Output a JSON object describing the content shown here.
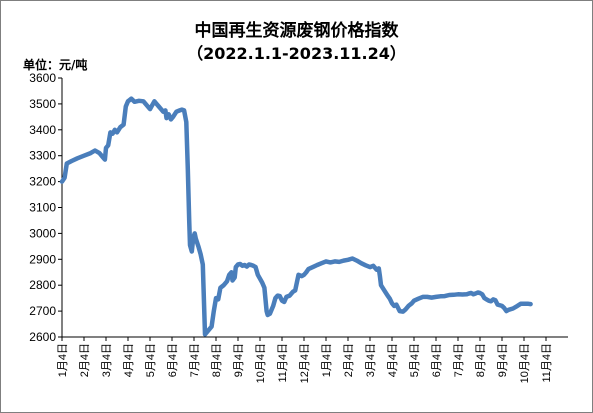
{
  "chart_data": {
    "type": "line",
    "title": "中国再生资源废钢价格指数",
    "subtitle": "（2022.1.1-2023.11.24）",
    "unit_label": "单位：元/吨",
    "ylim": [
      2600,
      3600
    ],
    "yticks": [
      2600,
      2700,
      2800,
      2900,
      3000,
      3100,
      3200,
      3300,
      3400,
      3500,
      3600
    ],
    "x_range": [
      0,
      23
    ],
    "xtick_labels": [
      {
        "label": "1月4日",
        "x": 0
      },
      {
        "label": "2月4日",
        "x": 1
      },
      {
        "label": "3月4日",
        "x": 2
      },
      {
        "label": "4月4日",
        "x": 3
      },
      {
        "label": "5月4日",
        "x": 4
      },
      {
        "label": "6月4日",
        "x": 5
      },
      {
        "label": "7月4日",
        "x": 6
      },
      {
        "label": "8月4日",
        "x": 7
      },
      {
        "label": "9月4日",
        "x": 8
      },
      {
        "label": "10月4日",
        "x": 9
      },
      {
        "label": "11月4日",
        "x": 10
      },
      {
        "label": "12月4日",
        "x": 11
      },
      {
        "label": "1月4日",
        "x": 12
      },
      {
        "label": "2月4日",
        "x": 13
      },
      {
        "label": "3月4日",
        "x": 14
      },
      {
        "label": "4月4日",
        "x": 15
      },
      {
        "label": "5月4日",
        "x": 16
      },
      {
        "label": "6月4日",
        "x": 17
      },
      {
        "label": "7月4日",
        "x": 18
      },
      {
        "label": "8月4日",
        "x": 19
      },
      {
        "label": "9月4日",
        "x": 20
      },
      {
        "label": "10月4日",
        "x": 21
      },
      {
        "label": "11月4日",
        "x": 22
      }
    ],
    "grid": false,
    "colors": {
      "line": "#4a7ebb",
      "axis": "#000000"
    },
    "series": [
      {
        "values": [
          [
            0.0,
            3200
          ],
          [
            0.12,
            3215
          ],
          [
            0.22,
            3270
          ],
          [
            0.45,
            3280
          ],
          [
            0.7,
            3290
          ],
          [
            1.0,
            3300
          ],
          [
            1.3,
            3310
          ],
          [
            1.5,
            3320
          ],
          [
            1.7,
            3310
          ],
          [
            1.85,
            3295
          ],
          [
            1.95,
            3285
          ],
          [
            2.0,
            3330
          ],
          [
            2.1,
            3340
          ],
          [
            2.2,
            3390
          ],
          [
            2.3,
            3385
          ],
          [
            2.4,
            3400
          ],
          [
            2.5,
            3390
          ],
          [
            2.65,
            3410
          ],
          [
            2.8,
            3420
          ],
          [
            2.9,
            3490
          ],
          [
            3.0,
            3510
          ],
          [
            3.15,
            3520
          ],
          [
            3.3,
            3508
          ],
          [
            3.5,
            3512
          ],
          [
            3.7,
            3510
          ],
          [
            3.85,
            3495
          ],
          [
            4.0,
            3480
          ],
          [
            4.1,
            3495
          ],
          [
            4.2,
            3510
          ],
          [
            4.3,
            3500
          ],
          [
            4.4,
            3490
          ],
          [
            4.5,
            3480
          ],
          [
            4.6,
            3470
          ],
          [
            4.7,
            3475
          ],
          [
            4.75,
            3445
          ],
          [
            4.85,
            3460
          ],
          [
            4.95,
            3440
          ],
          [
            5.05,
            3450
          ],
          [
            5.2,
            3470
          ],
          [
            5.35,
            3475
          ],
          [
            5.45,
            3478
          ],
          [
            5.55,
            3475
          ],
          [
            5.65,
            3430
          ],
          [
            5.72,
            3250
          ],
          [
            5.78,
            3050
          ],
          [
            5.82,
            2955
          ],
          [
            5.9,
            2930
          ],
          [
            5.97,
            2985
          ],
          [
            6.03,
            3000
          ],
          [
            6.08,
            2980
          ],
          [
            6.2,
            2950
          ],
          [
            6.3,
            2920
          ],
          [
            6.4,
            2880
          ],
          [
            6.5,
            2610
          ],
          [
            6.6,
            2620
          ],
          [
            6.7,
            2630
          ],
          [
            6.8,
            2640
          ],
          [
            6.9,
            2700
          ],
          [
            7.0,
            2750
          ],
          [
            7.1,
            2745
          ],
          [
            7.2,
            2790
          ],
          [
            7.35,
            2800
          ],
          [
            7.5,
            2815
          ],
          [
            7.6,
            2840
          ],
          [
            7.7,
            2850
          ],
          [
            7.75,
            2818
          ],
          [
            7.85,
            2830
          ],
          [
            7.9,
            2870
          ],
          [
            8.0,
            2880
          ],
          [
            8.1,
            2882
          ],
          [
            8.2,
            2875
          ],
          [
            8.3,
            2878
          ],
          [
            8.4,
            2872
          ],
          [
            8.5,
            2880
          ],
          [
            8.6,
            2878
          ],
          [
            8.7,
            2875
          ],
          [
            8.8,
            2870
          ],
          [
            8.9,
            2840
          ],
          [
            9.0,
            2825
          ],
          [
            9.1,
            2810
          ],
          [
            9.2,
            2790
          ],
          [
            9.3,
            2700
          ],
          [
            9.35,
            2685
          ],
          [
            9.45,
            2690
          ],
          [
            9.6,
            2720
          ],
          [
            9.7,
            2750
          ],
          [
            9.8,
            2760
          ],
          [
            9.9,
            2758
          ],
          [
            10.0,
            2740
          ],
          [
            10.1,
            2735
          ],
          [
            10.2,
            2755
          ],
          [
            10.35,
            2760
          ],
          [
            10.5,
            2775
          ],
          [
            10.6,
            2780
          ],
          [
            10.65,
            2800
          ],
          [
            10.75,
            2840
          ],
          [
            10.9,
            2835
          ],
          [
            11.0,
            2840
          ],
          [
            11.1,
            2850
          ],
          [
            11.2,
            2862
          ],
          [
            11.4,
            2870
          ],
          [
            11.6,
            2878
          ],
          [
            11.8,
            2885
          ],
          [
            12.0,
            2892
          ],
          [
            12.2,
            2888
          ],
          [
            12.4,
            2892
          ],
          [
            12.6,
            2890
          ],
          [
            12.8,
            2895
          ],
          [
            13.0,
            2898
          ],
          [
            13.2,
            2903
          ],
          [
            13.4,
            2895
          ],
          [
            13.6,
            2885
          ],
          [
            13.8,
            2877
          ],
          [
            14.0,
            2870
          ],
          [
            14.15,
            2875
          ],
          [
            14.3,
            2860
          ],
          [
            14.4,
            2865
          ],
          [
            14.45,
            2835
          ],
          [
            14.5,
            2800
          ],
          [
            14.65,
            2780
          ],
          [
            14.8,
            2760
          ],
          [
            14.9,
            2748
          ],
          [
            15.0,
            2730
          ],
          [
            15.1,
            2720
          ],
          [
            15.2,
            2725
          ],
          [
            15.35,
            2700
          ],
          [
            15.5,
            2698
          ],
          [
            15.6,
            2705
          ],
          [
            15.75,
            2720
          ],
          [
            15.9,
            2730
          ],
          [
            16.0,
            2740
          ],
          [
            16.2,
            2748
          ],
          [
            16.4,
            2755
          ],
          [
            16.6,
            2755
          ],
          [
            16.8,
            2752
          ],
          [
            17.0,
            2755
          ],
          [
            17.2,
            2757
          ],
          [
            17.4,
            2758
          ],
          [
            17.6,
            2762
          ],
          [
            17.8,
            2763
          ],
          [
            18.0,
            2765
          ],
          [
            18.2,
            2764
          ],
          [
            18.4,
            2765
          ],
          [
            18.5,
            2768
          ],
          [
            18.6,
            2770
          ],
          [
            18.7,
            2765
          ],
          [
            18.8,
            2768
          ],
          [
            18.9,
            2772
          ],
          [
            19.0,
            2770
          ],
          [
            19.1,
            2765
          ],
          [
            19.2,
            2750
          ],
          [
            19.3,
            2745
          ],
          [
            19.4,
            2740
          ],
          [
            19.5,
            2738
          ],
          [
            19.6,
            2745
          ],
          [
            19.7,
            2742
          ],
          [
            19.8,
            2725
          ],
          [
            20.0,
            2720
          ],
          [
            20.1,
            2712
          ],
          [
            20.2,
            2700
          ],
          [
            20.3,
            2705
          ],
          [
            20.5,
            2710
          ],
          [
            20.7,
            2720
          ],
          [
            20.85,
            2728
          ],
          [
            21.0,
            2728
          ],
          [
            21.2,
            2728
          ],
          [
            21.3,
            2727
          ]
        ]
      }
    ]
  }
}
